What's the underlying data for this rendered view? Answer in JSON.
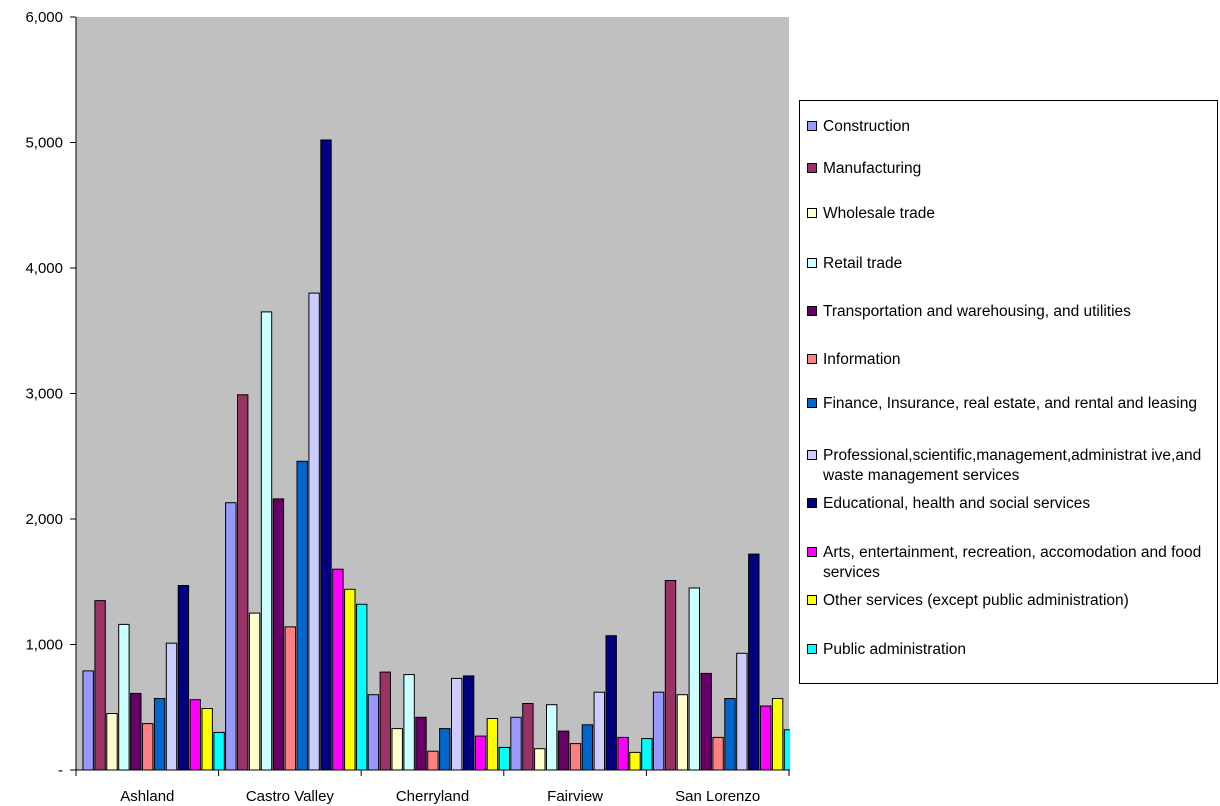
{
  "chart_data": {
    "type": "bar",
    "categories": [
      "Ashland",
      "Castro Valley",
      "Cherryland",
      "Fairview",
      "San Lorenzo"
    ],
    "ylim": [
      0,
      6000
    ],
    "yticks": [
      "-",
      "1,000",
      "2,000",
      "3,000",
      "4,000",
      "5,000",
      "6,000"
    ],
    "grid": false,
    "legend_position": "right",
    "plot_background": "#c0c0c0",
    "series": [
      {
        "name": "Construction",
        "color": "#9999ff",
        "values": [
          790,
          2130,
          600,
          420,
          620
        ]
      },
      {
        "name": "Manufacturing",
        "color": "#993366",
        "values": [
          1350,
          2990,
          780,
          530,
          1510
        ]
      },
      {
        "name": "Wholesale trade",
        "color": "#ffffcc",
        "values": [
          450,
          1250,
          330,
          170,
          600
        ]
      },
      {
        "name": "Retail trade",
        "color": "#ccffff",
        "values": [
          1160,
          3650,
          760,
          520,
          1450
        ]
      },
      {
        "name": "Transportation and warehousing, and utilities",
        "color": "#660066",
        "values": [
          610,
          2160,
          420,
          310,
          770
        ]
      },
      {
        "name": "Information",
        "color": "#ff8080",
        "values": [
          370,
          1140,
          150,
          210,
          260
        ]
      },
      {
        "name": "Finance, Insurance, real estate, and rental and leasing",
        "color": "#0066cc",
        "values": [
          570,
          2460,
          330,
          360,
          570
        ]
      },
      {
        "name": "Professional,scientific,management,administrat ive,and waste management services",
        "color": "#ccccff",
        "values": [
          1010,
          3800,
          730,
          620,
          930
        ]
      },
      {
        "name": "Educational, health and social services",
        "color": "#000080",
        "values": [
          1470,
          5020,
          750,
          1070,
          1720
        ]
      },
      {
        "name": "Arts, entertainment, recreation, accomodation and food services",
        "color": "#ff00ff",
        "values": [
          560,
          1600,
          270,
          260,
          510
        ]
      },
      {
        "name": "Other services (except public administration)",
        "color": "#ffff00",
        "values": [
          490,
          1440,
          410,
          140,
          570
        ]
      },
      {
        "name": "Public administration",
        "color": "#00ffff",
        "values": [
          300,
          1320,
          180,
          250,
          320
        ]
      }
    ]
  }
}
